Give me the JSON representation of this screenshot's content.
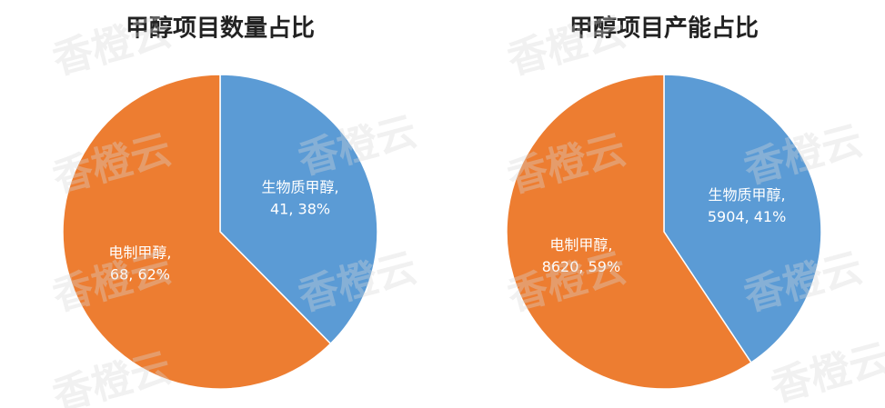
{
  "watermark": "香橙云",
  "chart_data": [
    {
      "type": "pie",
      "title": "甲醇项目数量占比",
      "categories": [
        "生物质甲醇,",
        "电制甲醇,"
      ],
      "values": [
        41,
        68
      ],
      "value_labels": [
        "41, 38%",
        "68, 62%"
      ],
      "colors": [
        "#5b9bd5",
        "#ed7d31"
      ]
    },
    {
      "type": "pie",
      "title": "甲醇项目产能占比",
      "categories": [
        "生物质甲醇,",
        "电制甲醇,"
      ],
      "values": [
        5904,
        8620
      ],
      "value_labels": [
        "5904, 41%",
        "8620, 59%"
      ],
      "colors": [
        "#5b9bd5",
        "#ed7d31"
      ]
    }
  ]
}
